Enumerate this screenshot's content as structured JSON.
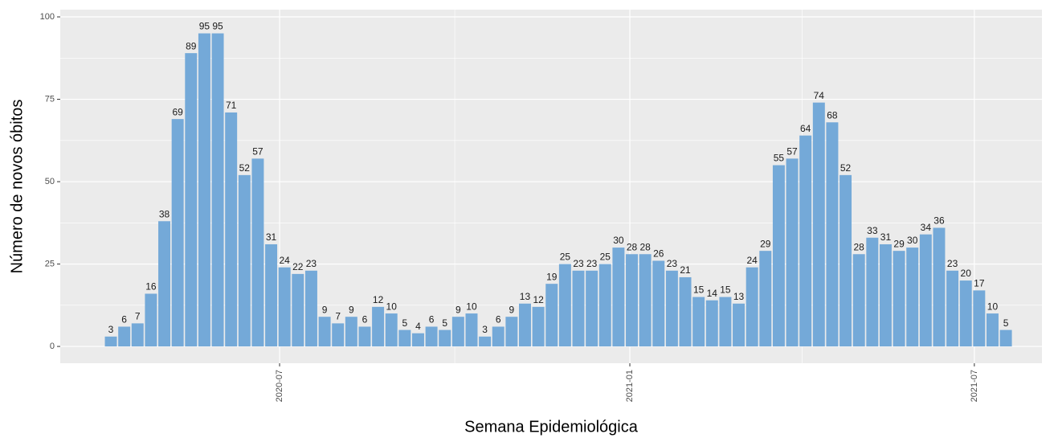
{
  "chart_data": {
    "type": "bar",
    "x_label": "Semana Epidemiológica",
    "y_label": "Número de novos óbitos",
    "x": [
      1,
      2,
      3,
      4,
      5,
      6,
      7,
      8,
      9,
      10,
      11,
      12,
      13,
      14,
      15,
      16,
      17,
      18,
      19,
      20,
      21,
      22,
      23,
      24,
      25,
      26,
      27,
      28,
      29,
      30,
      31,
      32,
      33,
      34,
      35,
      36,
      37,
      38,
      39,
      40,
      41,
      42,
      43,
      44,
      45,
      46,
      47,
      48,
      49,
      50,
      51,
      52,
      53,
      54,
      55,
      56,
      57,
      58,
      59,
      60,
      61,
      62,
      63,
      64,
      65,
      66,
      67,
      68
    ],
    "values": [
      3,
      6,
      7,
      16,
      38,
      69,
      89,
      95,
      95,
      71,
      52,
      57,
      31,
      24,
      22,
      23,
      9,
      7,
      9,
      6,
      12,
      10,
      5,
      4,
      6,
      5,
      9,
      10,
      3,
      6,
      9,
      13,
      12,
      19,
      25,
      23,
      23,
      25,
      30,
      28,
      28,
      26,
      23,
      21,
      15,
      14,
      15,
      13,
      24,
      29,
      55,
      57,
      64,
      74,
      68,
      52,
      28,
      33,
      31,
      29,
      30,
      34,
      36,
      23,
      20,
      17,
      10,
      5
    ],
    "color": "#74a9d8",
    "xlim": [
      -2.79,
      70.7
    ],
    "xticks": [
      {
        "value": 13.63,
        "label": "2020-07"
      },
      {
        "value": 39.85,
        "label": "2021-01"
      },
      {
        "value": 65.64,
        "label": "2021-07"
      }
    ],
    "ylim": [
      -5.1,
      102.2
    ],
    "yticks": [
      0,
      25,
      50,
      75,
      100
    ],
    "grid": true
  }
}
